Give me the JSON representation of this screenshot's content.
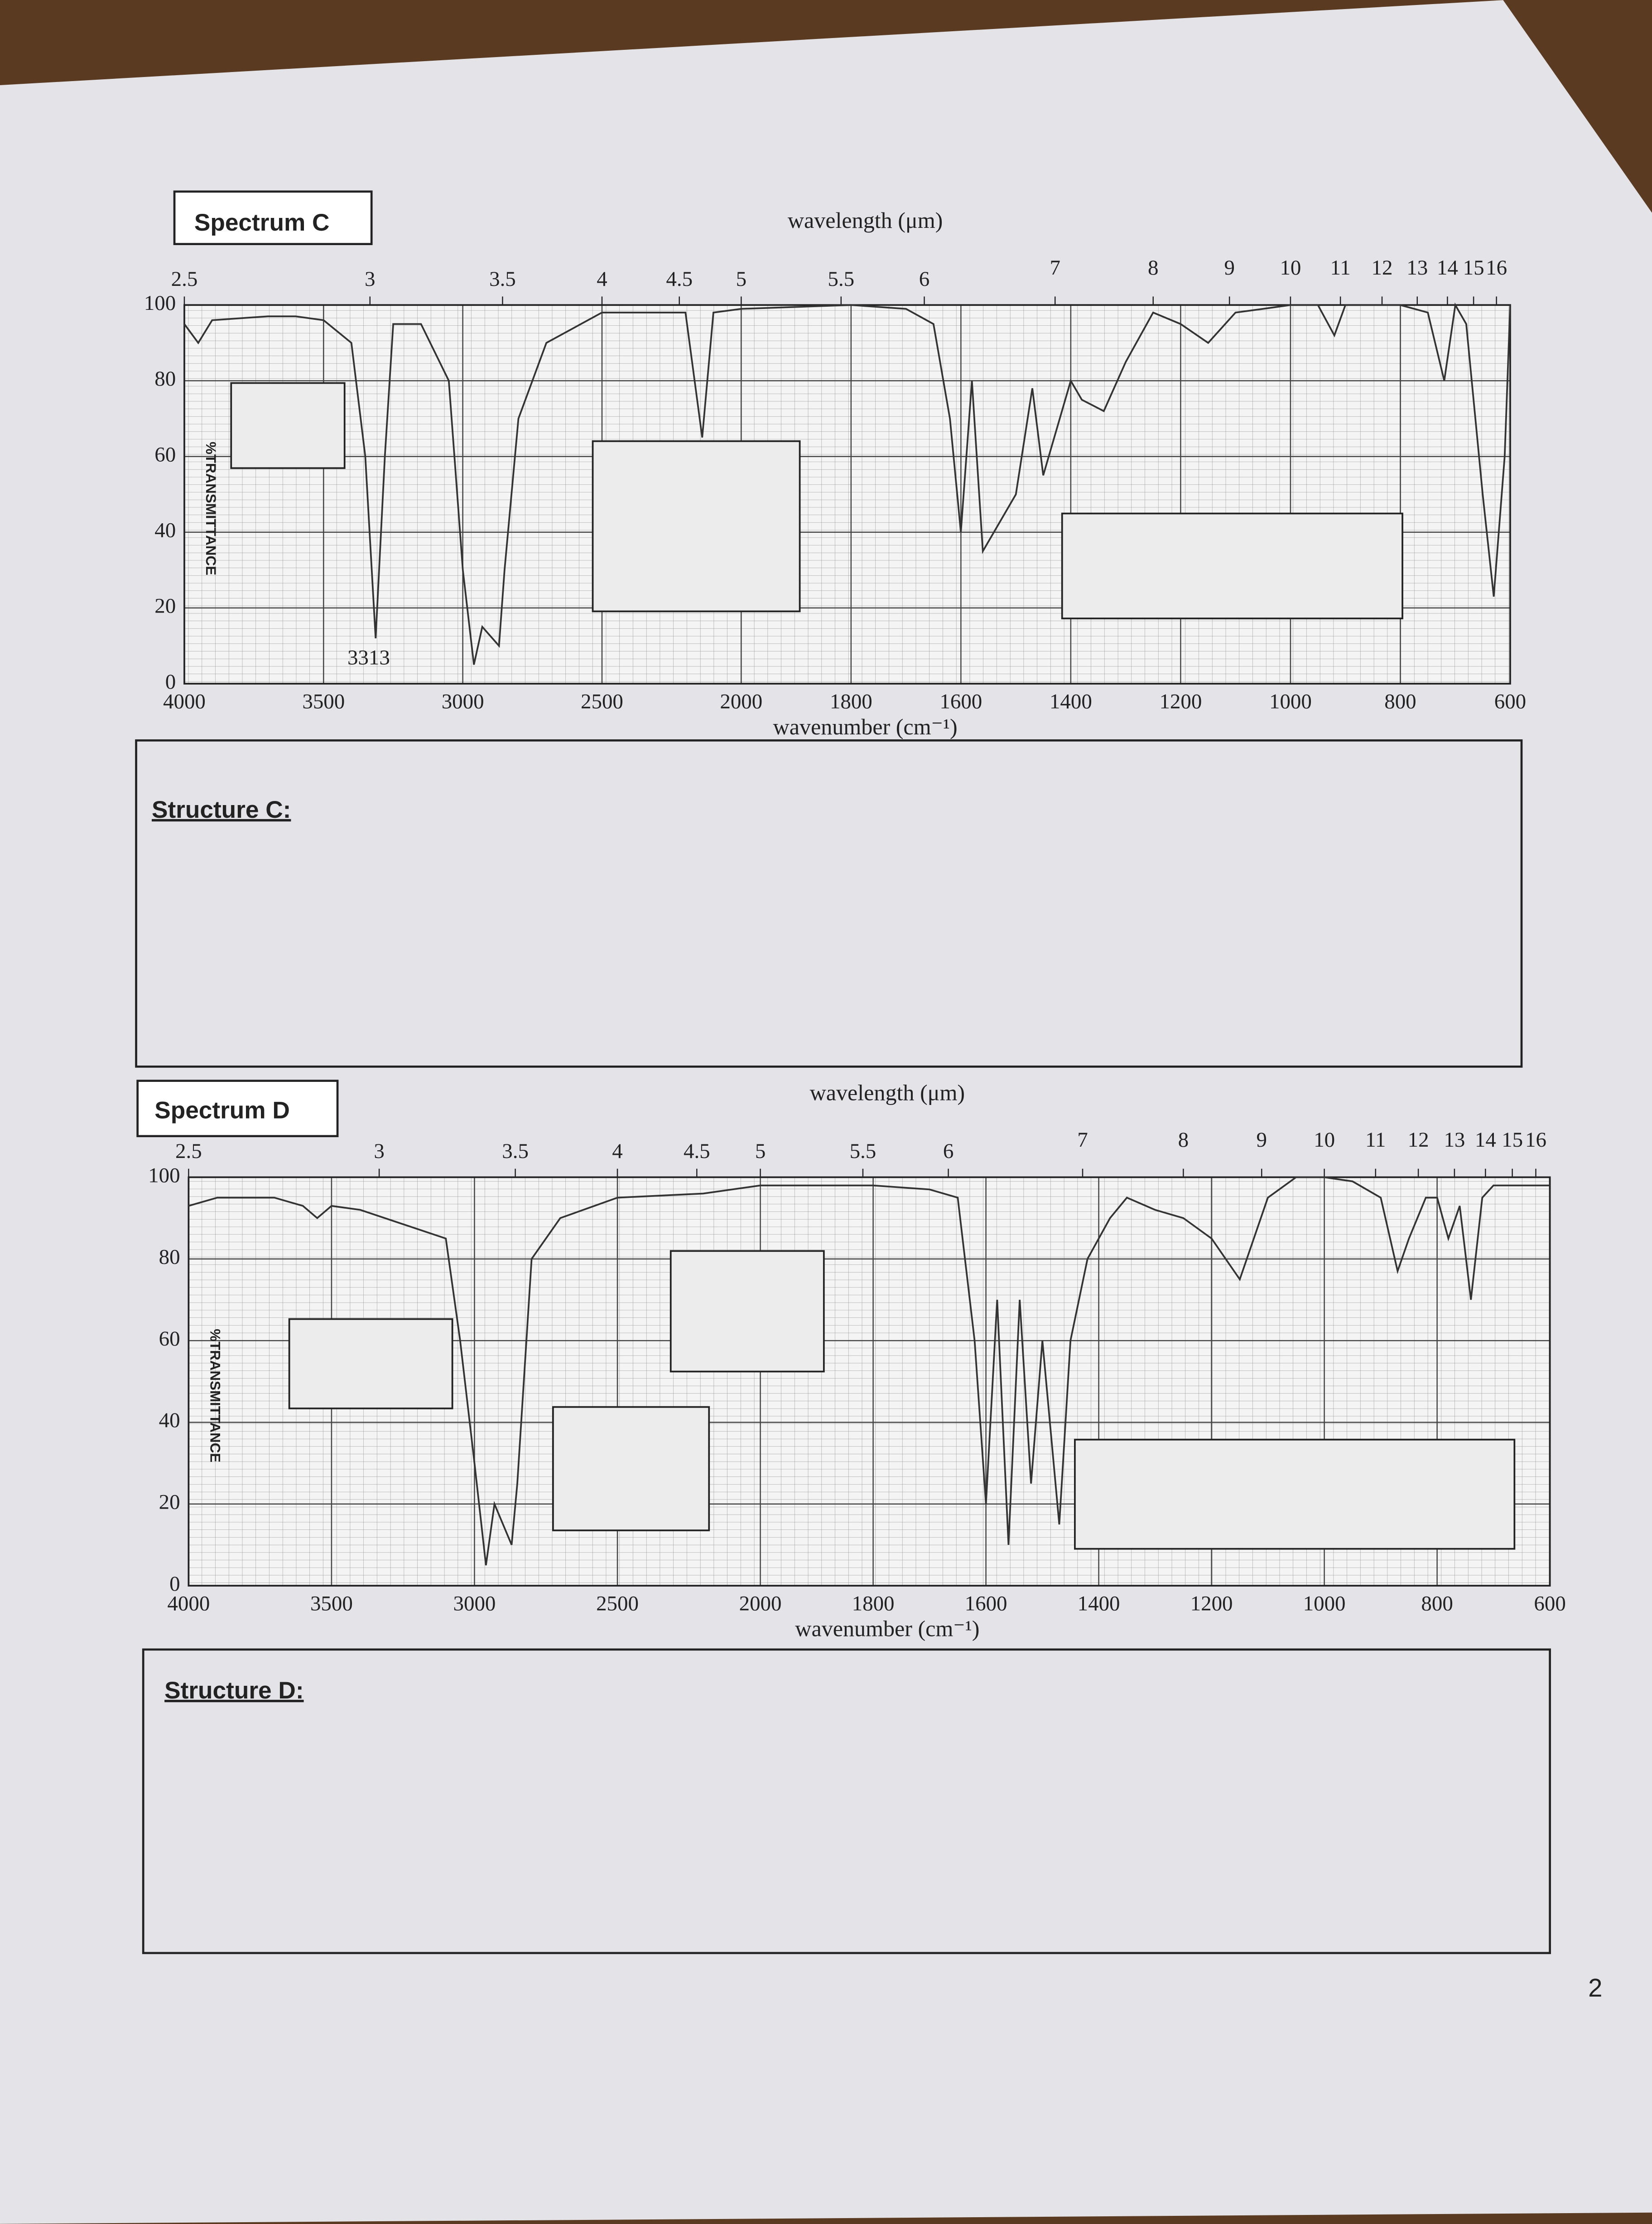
{
  "chart_data": [
    {
      "type": "line",
      "title": "Spectrum C",
      "x_label": "wavenumber (cm⁻¹)",
      "x2_label": "wavelength (μm)",
      "y_label": "%TRANSMITTANCE",
      "annotation": "3313",
      "color": "#333333",
      "xlim": [
        4000,
        600
      ],
      "ylim": [
        0,
        100
      ],
      "xticks": [
        4000,
        3500,
        3000,
        2500,
        2000,
        1800,
        1600,
        1400,
        1200,
        1000,
        800,
        600
      ],
      "yticks": [
        0,
        20,
        40,
        60,
        80,
        100
      ],
      "x2ticks": [
        2.5,
        3,
        3.5,
        4,
        4.5,
        5,
        5.5,
        6,
        7,
        8,
        9,
        10,
        11,
        12,
        13,
        14,
        15,
        16
      ],
      "x": [
        4000,
        3950,
        3900,
        3700,
        3600,
        3500,
        3400,
        3350,
        3313,
        3280,
        3250,
        3150,
        3050,
        3000,
        2960,
        2930,
        2870,
        2850,
        2800,
        2700,
        2500,
        2300,
        2200,
        2140,
        2100,
        2000,
        1800,
        1700,
        1650,
        1620,
        1600,
        1580,
        1560,
        1500,
        1470,
        1450,
        1400,
        1380,
        1340,
        1300,
        1250,
        1200,
        1150,
        1100,
        1050,
        1000,
        950,
        920,
        900,
        850,
        800,
        750,
        720,
        700,
        680,
        650,
        630,
        610,
        600
      ],
      "values": [
        95,
        90,
        96,
        97,
        97,
        96,
        90,
        60,
        12,
        60,
        95,
        95,
        80,
        30,
        5,
        15,
        10,
        30,
        70,
        90,
        98,
        98,
        98,
        65,
        98,
        99,
        100,
        99,
        95,
        70,
        40,
        80,
        35,
        50,
        78,
        55,
        80,
        75,
        72,
        85,
        98,
        95,
        90,
        98,
        99,
        100,
        100,
        92,
        100,
        100,
        100,
        98,
        80,
        100,
        95,
        50,
        23,
        60,
        100
      ]
    },
    {
      "type": "line",
      "title": "Spectrum D",
      "x_label": "wavenumber (cm⁻¹)",
      "x2_label": "wavelength (μm)",
      "y_label": "%TRANSMITTANCE",
      "color": "#333333",
      "xlim": [
        4000,
        600
      ],
      "ylim": [
        0,
        100
      ],
      "xticks": [
        4000,
        3500,
        3000,
        2500,
        2000,
        1800,
        1600,
        1400,
        1200,
        1000,
        800,
        600
      ],
      "yticks": [
        0,
        20,
        40,
        60,
        80,
        100
      ],
      "x2ticks": [
        2.5,
        3,
        3.5,
        4,
        4.5,
        5,
        5.5,
        6,
        7,
        8,
        9,
        10,
        11,
        12,
        13,
        14,
        15,
        16
      ],
      "x": [
        4000,
        3900,
        3700,
        3600,
        3550,
        3500,
        3400,
        3100,
        3050,
        3000,
        2960,
        2930,
        2870,
        2850,
        2800,
        2700,
        2500,
        2200,
        2000,
        1800,
        1700,
        1650,
        1620,
        1600,
        1580,
        1560,
        1540,
        1520,
        1500,
        1470,
        1450,
        1420,
        1380,
        1350,
        1300,
        1250,
        1200,
        1150,
        1100,
        1050,
        1000,
        950,
        900,
        870,
        850,
        820,
        800,
        780,
        760,
        740,
        720,
        700,
        650,
        600
      ],
      "values": [
        93,
        95,
        95,
        93,
        90,
        93,
        92,
        85,
        60,
        30,
        5,
        20,
        10,
        25,
        80,
        90,
        95,
        96,
        98,
        98,
        97,
        95,
        60,
        20,
        70,
        10,
        70,
        25,
        60,
        15,
        60,
        80,
        90,
        95,
        92,
        90,
        85,
        75,
        95,
        100,
        100,
        99,
        95,
        77,
        85,
        95,
        95,
        85,
        93,
        70,
        95,
        98,
        98,
        98
      ]
    }
  ],
  "structures": [
    "Structure C:",
    "Structure D:"
  ],
  "page_number": "2"
}
